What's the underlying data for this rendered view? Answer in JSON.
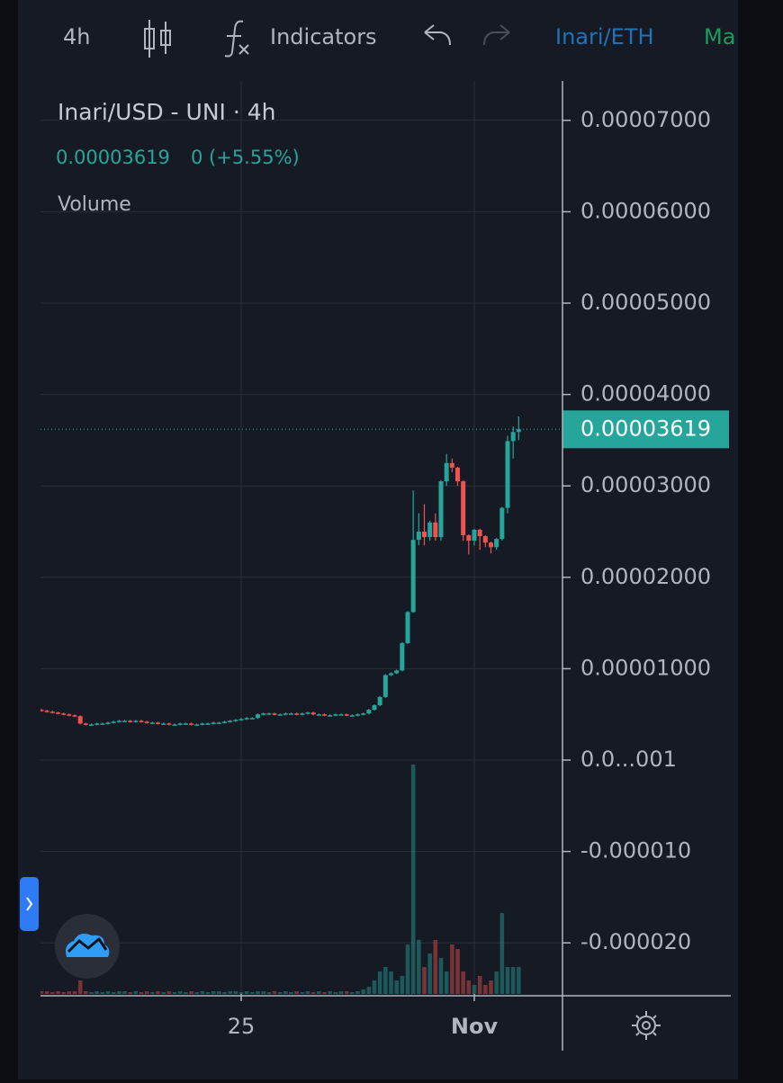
{
  "toolbar": {
    "interval": "4h",
    "indicators": "Indicators",
    "pair": "Inari/ETH",
    "market": "Ma"
  },
  "chart_data": {
    "type": "candlestick",
    "title": "Inari/USD - UNI · 4h",
    "change": "0 (+5.55%)",
    "last_price": {
      "value": 3.619e-05,
      "label": "0.00003619"
    },
    "up_color": "#26a69a",
    "down_color": "#ef5350",
    "grid": true,
    "categories": [
      null,
      null,
      null,
      null,
      null,
      null,
      null,
      null,
      null,
      null,
      null,
      null,
      null,
      null,
      null,
      null,
      null,
      null,
      null,
      null,
      null,
      null,
      null,
      null,
      null,
      null,
      null,
      null,
      null,
      null,
      null,
      null,
      null,
      null,
      null,
      null,
      "25",
      null,
      null,
      null,
      null,
      null,
      null,
      null,
      null,
      null,
      null,
      null,
      null,
      null,
      null,
      null,
      null,
      null,
      null,
      null,
      null,
      null,
      null,
      null,
      null,
      null,
      null,
      null,
      null,
      null,
      null,
      null,
      null,
      null,
      null,
      null,
      null,
      null,
      null,
      null,
      null,
      null,
      "Nov",
      null,
      null,
      null,
      null,
      null,
      null,
      null,
      null
    ],
    "open": [
      5.5e-06,
      5.4e-06,
      5.3e-06,
      5.2e-06,
      5.1e-06,
      5e-06,
      4.9e-06,
      4.8e-06,
      4e-06,
      3.9e-06,
      3.9e-06,
      4e-06,
      4e-06,
      4.1e-06,
      4.2e-06,
      4.3e-06,
      4.3e-06,
      4.2e-06,
      4.3e-06,
      4.2e-06,
      4.1e-06,
      4.1e-06,
      4e-06,
      4e-06,
      3.9e-06,
      3.9e-06,
      4e-06,
      4e-06,
      3.9e-06,
      3.9e-06,
      4e-06,
      4e-06,
      4.1e-06,
      4.1e-06,
      4.2e-06,
      4.3e-06,
      4.4e-06,
      4.5e-06,
      4.6e-06,
      4.6e-06,
      5e-06,
      5.1e-06,
      5.1e-06,
      5e-06,
      5e-06,
      5.1e-06,
      5.1e-06,
      5e-06,
      5.1e-06,
      5.2e-06,
      5e-06,
      5e-06,
      4.9e-06,
      4.9e-06,
      5e-06,
      5e-06,
      4.9e-06,
      4.9e-06,
      5e-06,
      5.1e-06,
      5.5e-06,
      6e-06,
      6.9e-06,
      9.3e-06,
      9.5e-06,
      9.8e-06,
      1.28e-05,
      1.62e-05,
      2.41e-05,
      2.5e-05,
      2.44e-05,
      2.6e-05,
      2.44e-05,
      3.05e-05,
      3.25e-05,
      3.2e-05,
      3.05e-05,
      2.46e-05,
      2.4e-05,
      2.52e-05,
      2.45e-05,
      2.38e-05,
      2.33e-05,
      2.42e-05,
      2.76e-05,
      3.49e-05,
      3.59e-05
    ],
    "high": [
      5.6e-06,
      5.5e-06,
      5.4e-06,
      5.3e-06,
      5.2e-06,
      5.1e-06,
      5e-06,
      4.9e-06,
      4.1e-06,
      4e-06,
      4.1e-06,
      4.1e-06,
      4.2e-06,
      4.3e-06,
      4.4e-06,
      4.4e-06,
      4.4e-06,
      4.4e-06,
      4.4e-06,
      4.3e-06,
      4.2e-06,
      4.2e-06,
      4.1e-06,
      4.1e-06,
      4e-06,
      4.1e-06,
      4.1e-06,
      4.1e-06,
      4e-06,
      4.1e-06,
      4.1e-06,
      4.2e-06,
      4.2e-06,
      4.3e-06,
      4.4e-06,
      4.5e-06,
      4.6e-06,
      4.7e-06,
      4.7e-06,
      5.1e-06,
      5.2e-06,
      5.2e-06,
      5.2e-06,
      5.1e-06,
      5.2e-06,
      5.2e-06,
      5.2e-06,
      5.2e-06,
      5.3e-06,
      5.3e-06,
      5.1e-06,
      5.1e-06,
      5e-06,
      5.1e-06,
      5.1e-06,
      5.1e-06,
      5e-06,
      5.1e-06,
      5.2e-06,
      5.6e-06,
      6.1e-06,
      7e-06,
      9.4e-06,
      9.6e-06,
      9.9e-06,
      1.29e-05,
      1.63e-05,
      2.95e-05,
      2.7e-05,
      2.8e-05,
      2.62e-05,
      2.7e-05,
      3.06e-05,
      3.35e-05,
      3.3e-05,
      3.21e-05,
      3.06e-05,
      2.47e-05,
      2.53e-05,
      2.53e-05,
      2.46e-05,
      2.39e-05,
      2.43e-05,
      2.77e-05,
      3.55e-05,
      3.65e-05,
      3.76e-05
    ],
    "low": [
      5.3e-06,
      5.2e-06,
      5.1e-06,
      5e-06,
      4.9e-06,
      4.8e-06,
      4.7e-06,
      3.9e-06,
      3.8e-06,
      3.8e-06,
      3.8e-06,
      3.9e-06,
      3.9e-06,
      4e-06,
      4.1e-06,
      4.2e-06,
      4.1e-06,
      4.1e-06,
      4.1e-06,
      4e-06,
      4e-06,
      3.9e-06,
      3.9e-06,
      3.8e-06,
      3.8e-06,
      3.8e-06,
      3.9e-06,
      3.8e-06,
      3.8e-06,
      3.8e-06,
      3.9e-06,
      3.9e-06,
      4e-06,
      4e-06,
      4.1e-06,
      4.2e-06,
      4.3e-06,
      4.4e-06,
      4.5e-06,
      4.5e-06,
      4.9e-06,
      5e-06,
      4.9e-06,
      4.9e-06,
      4.9e-06,
      5e-06,
      4.9e-06,
      4.9e-06,
      5e-06,
      4.9e-06,
      4.9e-06,
      4.8e-06,
      4.8e-06,
      4.8e-06,
      4.9e-06,
      4.8e-06,
      4.8e-06,
      4.8e-06,
      4.9e-06,
      5e-06,
      5.4e-06,
      5.9e-06,
      6.8e-06,
      9.2e-06,
      9.4e-06,
      9.7e-06,
      1.27e-05,
      1.61e-05,
      2.35e-05,
      2.35e-05,
      2.4e-05,
      2.4e-05,
      2.4e-05,
      3e-05,
      3.15e-05,
      3e-05,
      2.4e-05,
      2.25e-05,
      2.35e-05,
      2.3e-05,
      2.33e-05,
      2.26e-05,
      2.3e-05,
      2.4e-05,
      2.7e-05,
      3.3e-05,
      3.5e-05
    ],
    "close": [
      5.4e-06,
      5.3e-06,
      5.2e-06,
      5.1e-06,
      5e-06,
      4.9e-06,
      4.8e-06,
      4e-06,
      3.9e-06,
      3.9e-06,
      4e-06,
      4e-06,
      4.1e-06,
      4.2e-06,
      4.3e-06,
      4.3e-06,
      4.2e-06,
      4.3e-06,
      4.2e-06,
      4.1e-06,
      4.1e-06,
      4e-06,
      4e-06,
      3.9e-06,
      3.9e-06,
      4e-06,
      4e-06,
      3.9e-06,
      3.9e-06,
      4e-06,
      4e-06,
      4.1e-06,
      4.1e-06,
      4.2e-06,
      4.3e-06,
      4.4e-06,
      4.5e-06,
      4.6e-06,
      4.6e-06,
      5e-06,
      5.1e-06,
      5.1e-06,
      5e-06,
      5e-06,
      5.1e-06,
      5.1e-06,
      5e-06,
      5.1e-06,
      5.2e-06,
      5e-06,
      5e-06,
      4.9e-06,
      4.9e-06,
      5e-06,
      5e-06,
      4.9e-06,
      4.9e-06,
      5e-06,
      5.1e-06,
      5.5e-06,
      6e-06,
      6.9e-06,
      9.3e-06,
      9.5e-06,
      9.8e-06,
      1.28e-05,
      1.62e-05,
      2.41e-05,
      2.5e-05,
      2.44e-05,
      2.6e-05,
      2.44e-05,
      3.05e-05,
      3.25e-05,
      3.2e-05,
      3.05e-05,
      2.46e-05,
      2.4e-05,
      2.52e-05,
      2.45e-05,
      2.38e-05,
      2.33e-05,
      2.42e-05,
      2.76e-05,
      3.49e-05,
      3.59e-05,
      3.619e-05
    ],
    "volume": {
      "name": "Volume",
      "values": [
        3,
        3,
        2,
        3,
        2,
        3,
        3,
        15,
        3,
        2,
        3,
        2,
        3,
        2,
        3,
        3,
        2,
        3,
        2,
        3,
        2,
        3,
        2,
        3,
        2,
        3,
        2,
        3,
        2,
        3,
        2,
        3,
        3,
        2,
        3,
        3,
        2,
        3,
        2,
        3,
        3,
        2,
        3,
        2,
        3,
        2,
        3,
        2,
        3,
        2,
        3,
        2,
        3,
        2,
        3,
        3,
        2,
        3,
        5,
        8,
        15,
        25,
        30,
        25,
        15,
        20,
        55,
        255,
        60,
        30,
        45,
        60,
        40,
        25,
        55,
        50,
        25,
        15,
        10,
        20,
        10,
        15,
        25,
        90,
        30,
        30,
        30
      ]
    },
    "ylim": [
      -2.559e-05,
      7.431e-05
    ],
    "yticks": [
      {
        "value": 7e-05,
        "label": "0.00007000"
      },
      {
        "value": 6e-05,
        "label": "0.00006000"
      },
      {
        "value": 5e-05,
        "label": "0.00005000"
      },
      {
        "value": 4e-05,
        "label": "0.00004000"
      },
      {
        "value": 3e-05,
        "label": "0.00003000"
      },
      {
        "value": 2e-05,
        "label": "0.00002000"
      },
      {
        "value": 1e-05,
        "label": "0.00001000"
      },
      {
        "value": 0,
        "label": "0.0...001"
      },
      {
        "value": -1e-05,
        "label": "-0.000010"
      },
      {
        "value": -2e-05,
        "label": "-0.000020"
      }
    ]
  }
}
